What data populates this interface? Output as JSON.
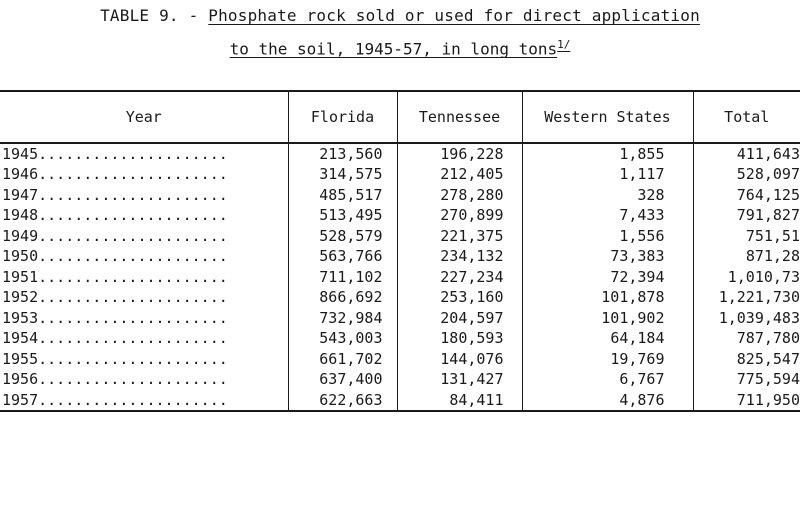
{
  "title": {
    "prefix": "TABLE 9. - ",
    "line1_underlined": "Phosphate rock sold or used for direct application",
    "line2_underlined": "to the soil, 1945-57, in long tons",
    "footnote_mark": "1/"
  },
  "table": {
    "headers": [
      "Year",
      "Florida",
      "Tennessee",
      "Western States",
      "Total"
    ],
    "rows": [
      {
        "year": "1945.....................",
        "florida": "213,560",
        "tennessee": "196,228",
        "western": "1,855",
        "total": "411,643"
      },
      {
        "year": "1946.....................",
        "florida": "314,575",
        "tennessee": "212,405",
        "western": "1,117",
        "total": "528,097"
      },
      {
        "year": "1947.....................",
        "florida": "485,517",
        "tennessee": "278,280",
        "western": "328",
        "total": "764,125"
      },
      {
        "year": "1948.....................",
        "florida": "513,495",
        "tennessee": "270,899",
        "western": "7,433",
        "total": "791,827"
      },
      {
        "year": "1949.....................",
        "florida": "528,579",
        "tennessee": "221,375",
        "western": "1,556",
        "total": "751,51"
      },
      {
        "year": "1950.....................",
        "florida": "563,766",
        "tennessee": "234,132",
        "western": "73,383",
        "total": "871,28"
      },
      {
        "year": "1951.....................",
        "florida": "711,102",
        "tennessee": "227,234",
        "western": "72,394",
        "total": "1,010,73"
      },
      {
        "year": "1952.....................",
        "florida": "866,692",
        "tennessee": "253,160",
        "western": "101,878",
        "total": "1,221,730"
      },
      {
        "year": "1953.....................",
        "florida": "732,984",
        "tennessee": "204,597",
        "western": "101,902",
        "total": "1,039,483"
      },
      {
        "year": "1954.....................",
        "florida": "543,003",
        "tennessee": "180,593",
        "western": "64,184",
        "total": "787,780"
      },
      {
        "year": "1955.....................",
        "florida": "661,702",
        "tennessee": "144,076",
        "western": "19,769",
        "total": "825,547"
      },
      {
        "year": "1956.....................",
        "florida": "637,400",
        "tennessee": "131,427",
        "western": "6,767",
        "total": "775,594"
      },
      {
        "year": "1957.....................",
        "florida": "622,663",
        "tennessee": "84,411",
        "western": "4,876",
        "total": "711,950"
      }
    ]
  }
}
